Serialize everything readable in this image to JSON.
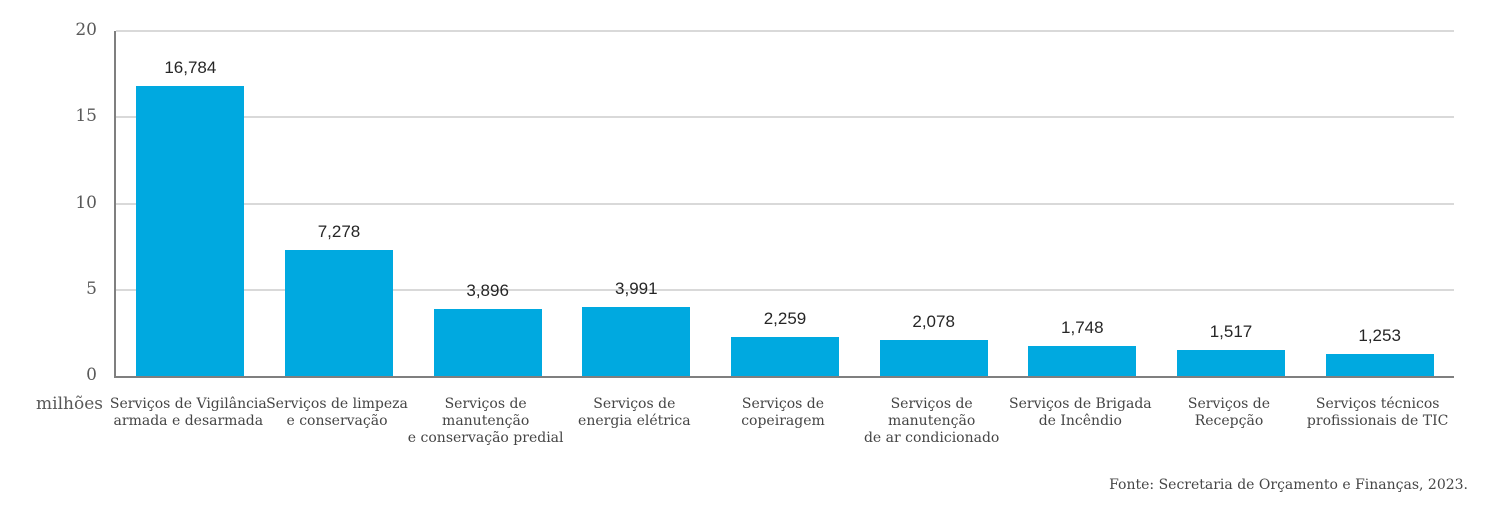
{
  "chart_data": {
    "type": "bar",
    "title": "",
    "unit_label": "milhões",
    "categories": [
      "Serviços de Vigilância\narmada e desarmada",
      "Serviços de limpeza\ne conservação",
      "Serviços de manutenção\ne conservação predial",
      "Serviços de\nenergia elétrica",
      "Serviços de\ncopeiragem",
      "Serviços de manutenção\nde ar condicionado",
      "Serviços de Brigada\nde Incêndio",
      "Serviços de\nRecepção",
      "Serviços técnicos\nprofissionais de TIC"
    ],
    "values_millions": [
      16.784,
      7.278,
      3.896,
      3.991,
      2.259,
      2.078,
      1.748,
      1.517,
      1.253
    ],
    "value_labels": [
      "16,784",
      "7,278",
      "3,896",
      "3,991",
      "2,259",
      "2,078",
      "1,748",
      "1,517",
      "1,253"
    ],
    "yticks": [
      "20",
      "15",
      "10",
      "5",
      "0"
    ],
    "ylim": [
      0,
      20
    ],
    "grid": true,
    "legend": "none",
    "bar_color": "#00a9e0",
    "axis_color": "#7f7f7f",
    "grid_color": "#d9d9d9"
  },
  "footer": {
    "source": "Fonte: Secretaria de Orçamento e Finanças, 2023."
  }
}
